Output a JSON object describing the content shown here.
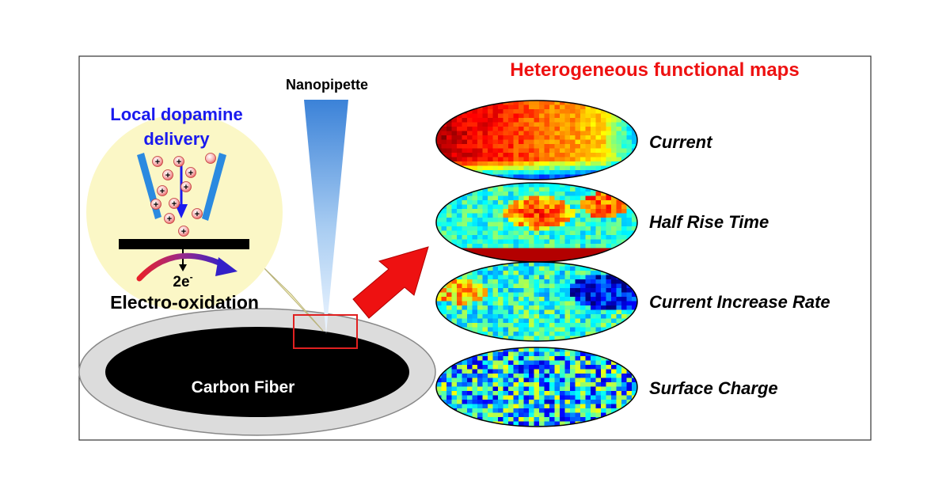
{
  "nanopipette_label": "Nanopipette",
  "delivery_title_line1": "Local dopamine",
  "delivery_title_line2": "delivery",
  "electron_label": "2e",
  "electron_superscript": "-",
  "oxidation_label": "Electro-oxidation",
  "fiber_label": "Carbon Fiber",
  "maps_title": "Heterogeneous functional maps",
  "maps": [
    {
      "label": "Current"
    },
    {
      "label": "Half Rise Time"
    },
    {
      "label": "Current Increase Rate"
    },
    {
      "label": "Surface Charge"
    }
  ],
  "colors": {
    "title_red": "#ee1111",
    "delivery_blue": "#1a1aee",
    "zoom_bubble": "#fbf7c6",
    "arrow_red": "#ee1111",
    "pipette_blue": "#4a8fe0",
    "fiber_black": "#000000",
    "fiber_ring": "#dcdcdc"
  }
}
